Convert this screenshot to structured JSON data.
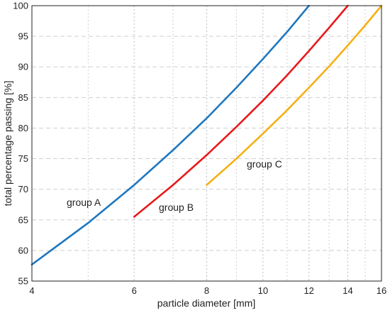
{
  "chart_data": {
    "type": "line",
    "title": "",
    "xlabel": "particle diameter [mm]",
    "ylabel": "total percentage passing [%]",
    "xscale": "log",
    "xlim": [
      4,
      16
    ],
    "ylim": [
      55,
      100
    ],
    "xticks": [
      4,
      6,
      8,
      10,
      12,
      14,
      16
    ],
    "xminor": [
      5,
      7,
      9,
      11,
      13,
      15
    ],
    "yticks": [
      55,
      60,
      65,
      70,
      75,
      80,
      85,
      90,
      95,
      100
    ],
    "grid": true,
    "series": [
      {
        "name": "group A",
        "color": "#1f77c0",
        "x": [
          4,
          5,
          6,
          7,
          8,
          9,
          10,
          11,
          12
        ],
        "y": [
          57.7,
          64.5,
          70.7,
          76.4,
          81.6,
          86.6,
          91.3,
          95.7,
          100
        ]
      },
      {
        "name": "group B",
        "color": "#e8191c",
        "x": [
          6,
          7,
          8,
          9,
          10,
          11,
          12,
          13,
          14
        ],
        "y": [
          65.5,
          70.7,
          75.6,
          80.2,
          84.5,
          88.6,
          92.6,
          96.4,
          100
        ]
      },
      {
        "name": "group C",
        "color": "#f5b014",
        "x": [
          8,
          9,
          10,
          11,
          12,
          13,
          14,
          15,
          16
        ],
        "y": [
          70.7,
          75.0,
          79.1,
          82.9,
          86.6,
          90.1,
          93.5,
          96.8,
          100
        ]
      }
    ],
    "annotations": [
      "group A",
      "group B",
      "group C"
    ]
  }
}
